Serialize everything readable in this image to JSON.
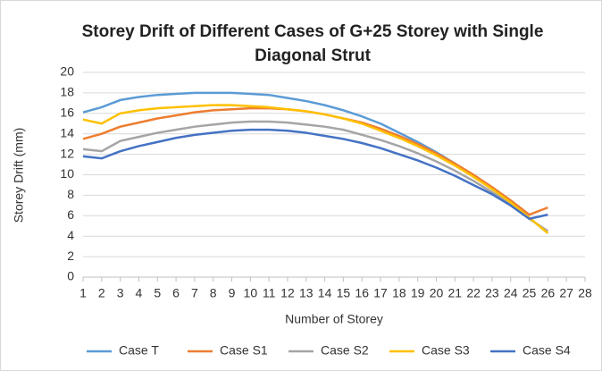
{
  "chart_data": {
    "type": "line",
    "title": "Storey Drift of Different Cases of G+25 Storey with Single Diagonal Strut",
    "x_label": "Number of Storey",
    "y_label": "Storey Drift (mm)",
    "x": [
      1,
      2,
      3,
      4,
      5,
      6,
      7,
      8,
      9,
      10,
      11,
      12,
      13,
      14,
      15,
      16,
      17,
      18,
      19,
      20,
      21,
      22,
      23,
      24,
      25,
      26
    ],
    "xlim": [
      1,
      28
    ],
    "xticks": [
      1,
      2,
      3,
      4,
      5,
      6,
      7,
      8,
      9,
      10,
      11,
      12,
      13,
      14,
      15,
      16,
      17,
      18,
      19,
      20,
      21,
      22,
      23,
      24,
      25,
      26,
      27,
      28
    ],
    "ylim": [
      0,
      20
    ],
    "yticks": [
      0,
      2,
      4,
      6,
      8,
      10,
      12,
      14,
      16,
      18,
      20
    ],
    "grid": true,
    "legend": "bottom",
    "series": [
      {
        "name": "Case T",
        "color": "#5b9bd5",
        "values": [
          16.1,
          16.6,
          17.3,
          17.6,
          17.8,
          17.9,
          18.0,
          18.0,
          18.0,
          17.9,
          17.8,
          17.5,
          17.2,
          16.8,
          16.3,
          15.7,
          15.0,
          14.1,
          13.2,
          12.2,
          11.1,
          9.9,
          8.6,
          7.3,
          5.8,
          4.3
        ]
      },
      {
        "name": "Case S1",
        "color": "#ed7d31",
        "values": [
          13.5,
          14.0,
          14.7,
          15.1,
          15.5,
          15.8,
          16.1,
          16.3,
          16.4,
          16.5,
          16.5,
          16.4,
          16.2,
          15.9,
          15.5,
          15.1,
          14.5,
          13.8,
          13.0,
          12.1,
          11.1,
          10.0,
          8.8,
          7.5,
          6.1,
          6.8
        ]
      },
      {
        "name": "Case S2",
        "color": "#a5a5a5",
        "values": [
          12.5,
          12.3,
          13.3,
          13.7,
          14.1,
          14.4,
          14.7,
          14.9,
          15.1,
          15.2,
          15.2,
          15.1,
          14.9,
          14.7,
          14.4,
          13.9,
          13.4,
          12.8,
          12.1,
          11.3,
          10.4,
          9.4,
          8.3,
          7.1,
          5.7,
          4.5
        ]
      },
      {
        "name": "Case S3",
        "color": "#ffc000",
        "values": [
          15.4,
          15.0,
          16.0,
          16.3,
          16.5,
          16.6,
          16.7,
          16.8,
          16.8,
          16.7,
          16.6,
          16.4,
          16.2,
          15.9,
          15.5,
          15.0,
          14.3,
          13.6,
          12.8,
          11.9,
          10.9,
          9.8,
          8.6,
          7.3,
          5.8,
          4.3
        ]
      },
      {
        "name": "Case S4",
        "color": "#4472c4",
        "values": [
          11.8,
          11.6,
          12.3,
          12.8,
          13.2,
          13.6,
          13.9,
          14.1,
          14.3,
          14.4,
          14.4,
          14.3,
          14.1,
          13.8,
          13.5,
          13.1,
          12.6,
          12.0,
          11.4,
          10.7,
          9.9,
          9.0,
          8.1,
          7.0,
          5.7,
          6.1
        ]
      }
    ]
  }
}
